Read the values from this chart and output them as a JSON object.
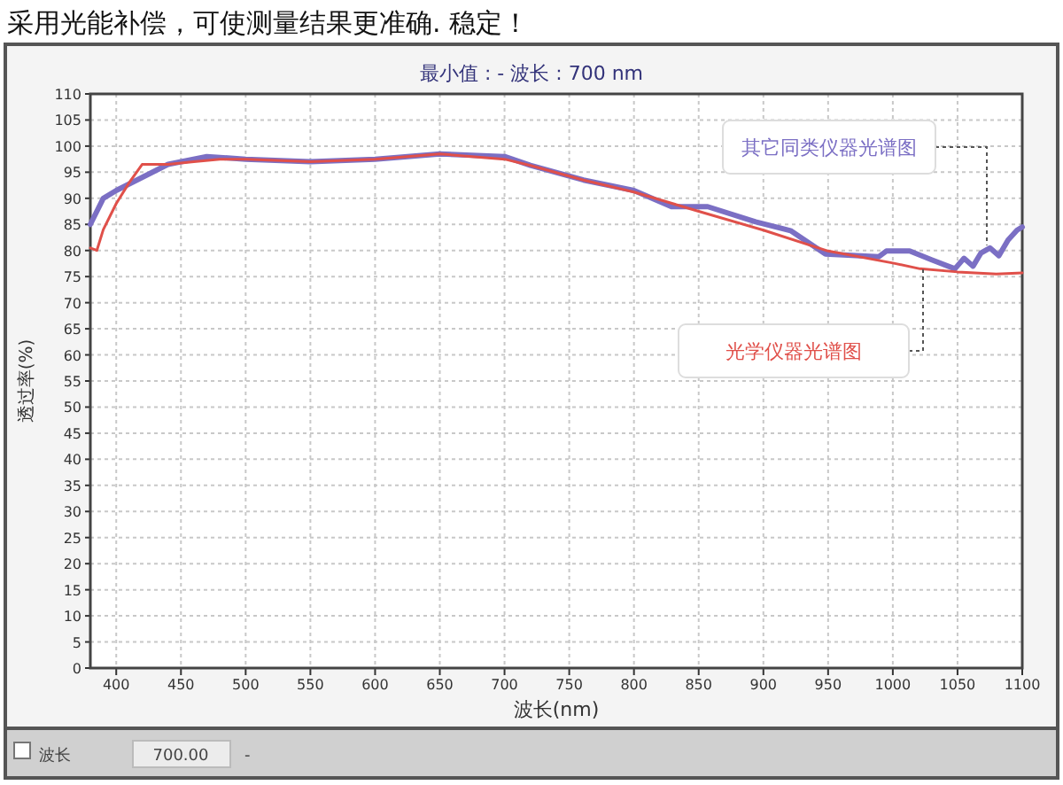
{
  "chart_data": {
    "type": "line",
    "title": "采用光能补偿，可使测量结果更准确. 稳定！",
    "subtitle": "最小值 : -   波长 : 700 nm",
    "xlabel": "波长(nm)",
    "ylabel": "透过率(%)",
    "xlim": [
      380,
      1100
    ],
    "xticks": [
      400,
      450,
      500,
      550,
      600,
      650,
      700,
      750,
      800,
      850,
      900,
      950,
      1000,
      1050,
      1100
    ],
    "ylim": [
      0,
      110
    ],
    "yticks": [
      0,
      5,
      10,
      15,
      20,
      25,
      30,
      35,
      40,
      45,
      50,
      55,
      60,
      65,
      70,
      75,
      80,
      85,
      90,
      95,
      100,
      105,
      110
    ],
    "grid": true,
    "marker": "none",
    "line_style": "solid",
    "annotations": [
      "波长",
      "700.00",
      "-"
    ],
    "series": [
      {
        "name": "其它同类仪器光谱图",
        "color": "#7b6fc4",
        "x": [
          380,
          390,
          400,
          420,
          440,
          470,
          500,
          550,
          600,
          650,
          700,
          720,
          761,
          800,
          829,
          857,
          894,
          921,
          948,
          989,
          995,
          1013,
          1030,
          1048,
          1055,
          1062,
          1068,
          1075,
          1082,
          1089,
          1096,
          1100
        ],
        "values": [
          85,
          90,
          91.5,
          94,
          96.5,
          98,
          97.5,
          97,
          97.5,
          98.5,
          98,
          96.3,
          93.5,
          91.5,
          88.4,
          88.4,
          85.5,
          83.8,
          79.3,
          78.8,
          79.9,
          79.9,
          78.2,
          76.5,
          78.5,
          77,
          79.5,
          80.5,
          79,
          82,
          83.9,
          84.5
        ]
      },
      {
        "name": "光学仪器光谱图",
        "color": "#e0504a",
        "x": [
          380,
          385,
          390,
          400,
          410,
          420,
          440,
          460,
          480,
          500,
          550,
          600,
          650,
          700,
          720,
          761,
          800,
          850,
          900,
          950,
          1000,
          1021,
          1050,
          1080,
          1100
        ],
        "values": [
          80.5,
          80,
          84,
          89,
          93,
          96.5,
          96.5,
          97,
          97.5,
          97.5,
          97,
          97.5,
          98.5,
          97.5,
          96.3,
          93.5,
          91.2,
          87.5,
          83.9,
          79.9,
          77.6,
          76.5,
          75.9,
          75.5,
          75.7
        ]
      }
    ]
  }
}
